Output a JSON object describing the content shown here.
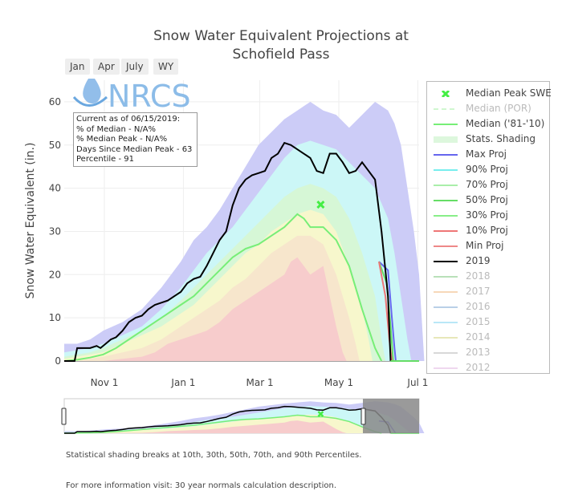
{
  "title_line1": "Snow Water Equivalent Projections at",
  "title_line2": "Schofield Pass",
  "range_buttons": [
    "Jan",
    "Apr",
    "July",
    "WY"
  ],
  "logo_text": "NRCS",
  "info_box": {
    "line1": "Current as of 06/15/2019:",
    "line2": "% of Median - N/A%",
    "line3": "% Median Peak - N/A%",
    "line4": "Days Since Median Peak - 63",
    "line5": "Percentile - 91"
  },
  "footnote1": "Statistical shading breaks at 10th, 30th, 50th, 70th, and 90th Percentiles.",
  "footnote2": "For more information visit: 30 year normals calculation description.",
  "legend": [
    {
      "label": "Median Peak SWE",
      "color": "#44ee44",
      "style": "marker",
      "dim": false
    },
    {
      "label": "Median (POR)",
      "color": "#99ee99",
      "style": "dash",
      "dim": true
    },
    {
      "label": "Median ('81-'10)",
      "color": "#77ee77",
      "style": "line",
      "dim": false
    },
    {
      "label": "Stats. Shading",
      "color": "#ddf7dd",
      "style": "fill",
      "dim": false
    },
    {
      "label": "Max Proj",
      "color": "#6666ee",
      "style": "line",
      "dim": false
    },
    {
      "label": "90% Proj",
      "color": "#77eeee",
      "style": "line",
      "dim": false
    },
    {
      "label": "70% Proj",
      "color": "#aaeeaa",
      "style": "line",
      "dim": false
    },
    {
      "label": "50% Proj",
      "color": "#66dd66",
      "style": "line",
      "dim": false
    },
    {
      "label": "30% Proj",
      "color": "#88ee88",
      "style": "line",
      "dim": false
    },
    {
      "label": "10% Proj",
      "color": "#ee7777",
      "style": "line",
      "dim": false
    },
    {
      "label": "Min Proj",
      "color": "#ee8888",
      "style": "line",
      "dim": false
    },
    {
      "label": "2019",
      "color": "#000000",
      "style": "line",
      "dim": false
    },
    {
      "label": "2018",
      "color": "#66bb66",
      "style": "line",
      "dim": true
    },
    {
      "label": "2017",
      "color": "#eeaa66",
      "style": "line",
      "dim": true
    },
    {
      "label": "2016",
      "color": "#6699cc",
      "style": "line",
      "dim": true
    },
    {
      "label": "2015",
      "color": "#66ccee",
      "style": "line",
      "dim": true
    },
    {
      "label": "2014",
      "color": "#cccc66",
      "style": "line",
      "dim": true
    },
    {
      "label": "2013",
      "color": "#aaaaaa",
      "style": "line",
      "dim": true
    },
    {
      "label": "2012",
      "color": "#ddaadd",
      "style": "line",
      "dim": true
    }
  ],
  "chart_data": {
    "type": "area",
    "title": "Snow Water Equivalent Projections at Schofield Pass",
    "ylabel": "Snow Water Equivalent (in.)",
    "ylim": [
      0,
      65
    ],
    "xlim_days": [
      0,
      274
    ],
    "y_ticks": [
      0,
      10,
      20,
      30,
      40,
      50,
      60
    ],
    "x_ticks": [
      {
        "label": "Nov  1",
        "day": 31
      },
      {
        "label": "Jan  1",
        "day": 92
      },
      {
        "label": "Mar  1",
        "day": 151
      },
      {
        "label": "May  1",
        "day": 212
      },
      {
        "label": "Jul  1",
        "day": 273
      }
    ],
    "x_unit": "days since Oct 1, 2018",
    "grid": true,
    "colors": {
      "max_band": "#ccccf7",
      "p90_band": "#ccf7f7",
      "p70_band": "#d6f7d6",
      "p50_band": "#f7f7cc",
      "p30_band": "#f7e6cc",
      "p10_band": "#f7cccc",
      "median": "#77ee77",
      "y2019": "#000000",
      "proj_max": "#6666ee",
      "proj_min": "#ee7777",
      "proj_mid": "#66dd66"
    },
    "series": [
      {
        "name": "Max",
        "points": [
          [
            0,
            4
          ],
          [
            10,
            4
          ],
          [
            20,
            5
          ],
          [
            30,
            7
          ],
          [
            45,
            9
          ],
          [
            60,
            12
          ],
          [
            75,
            17
          ],
          [
            90,
            23
          ],
          [
            100,
            28
          ],
          [
            110,
            31
          ],
          [
            120,
            35
          ],
          [
            130,
            40
          ],
          [
            140,
            45
          ],
          [
            150,
            50
          ],
          [
            160,
            53
          ],
          [
            170,
            56
          ],
          [
            180,
            58
          ],
          [
            190,
            60
          ],
          [
            200,
            58
          ],
          [
            210,
            57
          ],
          [
            220,
            54
          ],
          [
            230,
            57
          ],
          [
            240,
            60
          ],
          [
            250,
            58
          ],
          [
            255,
            55
          ],
          [
            260,
            50
          ],
          [
            265,
            40
          ],
          [
            270,
            30
          ],
          [
            274,
            20
          ],
          [
            276,
            10
          ],
          [
            278,
            0
          ]
        ]
      },
      {
        "name": "90%",
        "points": [
          [
            0,
            2
          ],
          [
            10,
            2.5
          ],
          [
            20,
            3
          ],
          [
            30,
            4
          ],
          [
            45,
            6
          ],
          [
            60,
            8
          ],
          [
            75,
            12
          ],
          [
            90,
            17
          ],
          [
            100,
            21
          ],
          [
            110,
            25
          ],
          [
            120,
            28
          ],
          [
            130,
            31
          ],
          [
            140,
            35
          ],
          [
            150,
            39
          ],
          [
            160,
            43
          ],
          [
            170,
            47
          ],
          [
            180,
            50
          ],
          [
            190,
            51
          ],
          [
            200,
            50
          ],
          [
            210,
            49
          ],
          [
            220,
            46
          ],
          [
            230,
            43
          ],
          [
            240,
            40
          ],
          [
            250,
            33
          ],
          [
            255,
            25
          ],
          [
            260,
            15
          ],
          [
            265,
            5
          ],
          [
            268,
            0
          ]
        ]
      },
      {
        "name": "70%",
        "points": [
          [
            0,
            1
          ],
          [
            10,
            1.5
          ],
          [
            20,
            2
          ],
          [
            30,
            3
          ],
          [
            45,
            5
          ],
          [
            60,
            7
          ],
          [
            75,
            10
          ],
          [
            90,
            14
          ],
          [
            100,
            17
          ],
          [
            110,
            20
          ],
          [
            120,
            23
          ],
          [
            130,
            26
          ],
          [
            140,
            29
          ],
          [
            150,
            32
          ],
          [
            160,
            35
          ],
          [
            170,
            38
          ],
          [
            180,
            40
          ],
          [
            190,
            41
          ],
          [
            200,
            40
          ],
          [
            210,
            38
          ],
          [
            220,
            33
          ],
          [
            230,
            25
          ],
          [
            240,
            15
          ],
          [
            245,
            5
          ],
          [
            248,
            0
          ]
        ]
      },
      {
        "name": "50%",
        "points": [
          [
            0,
            0.5
          ],
          [
            10,
            1
          ],
          [
            20,
            1.5
          ],
          [
            30,
            2
          ],
          [
            45,
            4
          ],
          [
            60,
            6
          ],
          [
            75,
            8
          ],
          [
            90,
            11
          ],
          [
            100,
            13
          ],
          [
            110,
            16
          ],
          [
            120,
            19
          ],
          [
            130,
            22
          ],
          [
            140,
            25
          ],
          [
            150,
            27
          ],
          [
            160,
            30
          ],
          [
            170,
            32
          ],
          [
            180,
            34
          ],
          [
            190,
            35
          ],
          [
            200,
            34
          ],
          [
            210,
            30
          ],
          [
            220,
            22
          ],
          [
            230,
            12
          ],
          [
            235,
            5
          ],
          [
            238,
            0
          ]
        ]
      },
      {
        "name": "30%",
        "points": [
          [
            0,
            0
          ],
          [
            10,
            0
          ],
          [
            20,
            0.5
          ],
          [
            30,
            1
          ],
          [
            45,
            2
          ],
          [
            60,
            3
          ],
          [
            75,
            5
          ],
          [
            90,
            8
          ],
          [
            100,
            10
          ],
          [
            110,
            12
          ],
          [
            120,
            14
          ],
          [
            130,
            17
          ],
          [
            140,
            19
          ],
          [
            150,
            22
          ],
          [
            160,
            25
          ],
          [
            170,
            27
          ],
          [
            180,
            29
          ],
          [
            190,
            29
          ],
          [
            200,
            27
          ],
          [
            210,
            20
          ],
          [
            220,
            10
          ],
          [
            225,
            4
          ],
          [
            228,
            0
          ]
        ]
      },
      {
        "name": "10%",
        "points": [
          [
            0,
            0
          ],
          [
            20,
            0
          ],
          [
            30,
            0
          ],
          [
            45,
            0.5
          ],
          [
            60,
            1
          ],
          [
            70,
            2
          ],
          [
            80,
            4
          ],
          [
            90,
            5
          ],
          [
            100,
            6
          ],
          [
            110,
            7
          ],
          [
            120,
            9
          ],
          [
            130,
            12
          ],
          [
            140,
            14
          ],
          [
            150,
            16
          ],
          [
            160,
            18
          ],
          [
            170,
            20
          ],
          [
            175,
            23
          ],
          [
            180,
            24
          ],
          [
            190,
            20
          ],
          [
            200,
            22
          ],
          [
            205,
            15
          ],
          [
            210,
            8
          ],
          [
            215,
            2
          ],
          [
            218,
            0
          ]
        ]
      },
      {
        "name": "Median ('81-'10)",
        "points": [
          [
            0,
            0
          ],
          [
            10,
            0.3
          ],
          [
            20,
            0.8
          ],
          [
            30,
            1.5
          ],
          [
            40,
            3
          ],
          [
            50,
            5
          ],
          [
            60,
            7
          ],
          [
            70,
            9
          ],
          [
            80,
            11
          ],
          [
            90,
            13
          ],
          [
            100,
            15
          ],
          [
            110,
            18
          ],
          [
            120,
            21
          ],
          [
            130,
            24
          ],
          [
            140,
            26
          ],
          [
            150,
            27
          ],
          [
            160,
            29
          ],
          [
            170,
            31
          ],
          [
            180,
            34
          ],
          [
            185,
            33
          ],
          [
            190,
            31
          ],
          [
            200,
            31
          ],
          [
            210,
            28
          ],
          [
            220,
            22
          ],
          [
            230,
            12
          ],
          [
            240,
            3
          ],
          [
            245,
            0
          ]
        ]
      },
      {
        "name": "2019",
        "points": [
          [
            0,
            0
          ],
          [
            8,
            0
          ],
          [
            10,
            3
          ],
          [
            15,
            3
          ],
          [
            20,
            3
          ],
          [
            25,
            3.5
          ],
          [
            28,
            3
          ],
          [
            32,
            4
          ],
          [
            36,
            5
          ],
          [
            40,
            5.5
          ],
          [
            45,
            7
          ],
          [
            50,
            9
          ],
          [
            55,
            10
          ],
          [
            60,
            10.5
          ],
          [
            65,
            12
          ],
          [
            70,
            13
          ],
          [
            75,
            13.5
          ],
          [
            80,
            14
          ],
          [
            85,
            15
          ],
          [
            90,
            16
          ],
          [
            95,
            18
          ],
          [
            100,
            19
          ],
          [
            105,
            19.5
          ],
          [
            110,
            22
          ],
          [
            115,
            25
          ],
          [
            120,
            28
          ],
          [
            125,
            30
          ],
          [
            130,
            36
          ],
          [
            135,
            40
          ],
          [
            140,
            42
          ],
          [
            145,
            43
          ],
          [
            150,
            43.5
          ],
          [
            155,
            44
          ],
          [
            160,
            47
          ],
          [
            165,
            48
          ],
          [
            170,
            50.5
          ],
          [
            175,
            50
          ],
          [
            180,
            49
          ],
          [
            185,
            48
          ],
          [
            190,
            47
          ],
          [
            195,
            44
          ],
          [
            200,
            43.5
          ],
          [
            205,
            48
          ],
          [
            210,
            48
          ],
          [
            215,
            46
          ],
          [
            220,
            43.5
          ],
          [
            225,
            44
          ],
          [
            230,
            46
          ],
          [
            235,
            44
          ],
          [
            240,
            42
          ],
          [
            245,
            30
          ],
          [
            250,
            15
          ],
          [
            252,
            0
          ]
        ]
      },
      {
        "name": "Max Proj",
        "points": [
          [
            243,
            23
          ],
          [
            250,
            21
          ],
          [
            253,
            10
          ],
          [
            255,
            3
          ],
          [
            256,
            0
          ]
        ]
      },
      {
        "name": "Min Proj",
        "points": [
          [
            243,
            23
          ],
          [
            248,
            15
          ],
          [
            251,
            5
          ],
          [
            253,
            0
          ]
        ]
      },
      {
        "name": "50% Proj",
        "points": [
          [
            243,
            23
          ],
          [
            249,
            18
          ],
          [
            252,
            8
          ],
          [
            254,
            0
          ]
        ]
      },
      {
        "name": "Median Peak SWE",
        "points": [
          [
            198,
            36.2
          ]
        ]
      }
    ]
  }
}
